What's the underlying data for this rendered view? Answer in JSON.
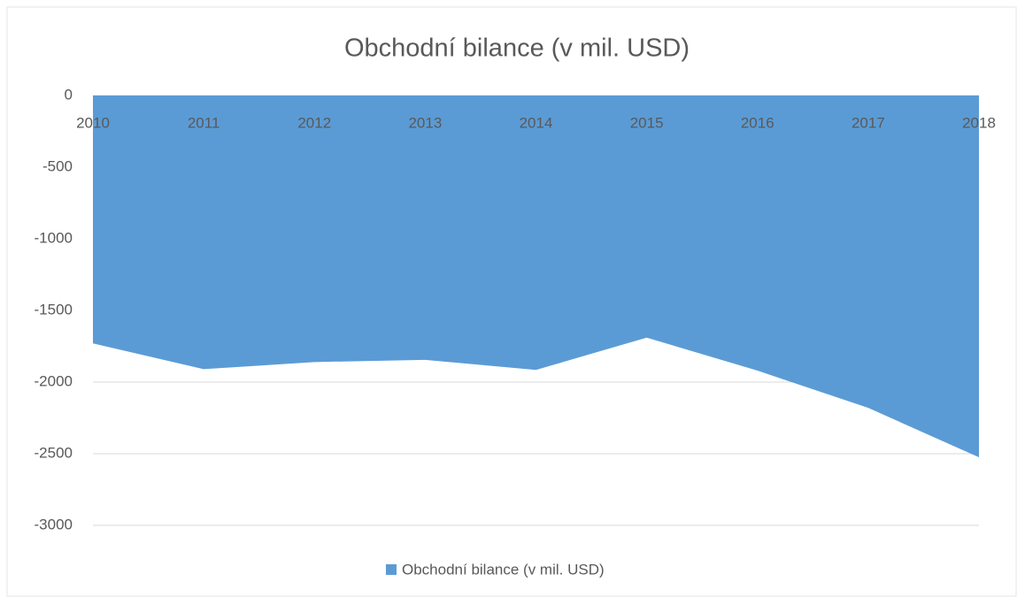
{
  "chart_data": {
    "type": "area",
    "title": "Obchodní bilance (v mil. USD)",
    "categories": [
      "2010",
      "2011",
      "2012",
      "2013",
      "2014",
      "2015",
      "2016",
      "2017",
      "2018"
    ],
    "series": [
      {
        "name": "Obchodní bilance (v mil. USD)",
        "color": "#5b9bd5",
        "values": [
          -1730,
          -1910,
          -1860,
          -1845,
          -1915,
          -1690,
          -1920,
          -2180,
          -2525
        ]
      }
    ],
    "ylim": [
      -3000,
      0
    ],
    "yticks": [
      0,
      -500,
      -1000,
      -1500,
      -2000,
      -2500,
      -3000
    ],
    "grid": true,
    "legend": "bottom"
  }
}
